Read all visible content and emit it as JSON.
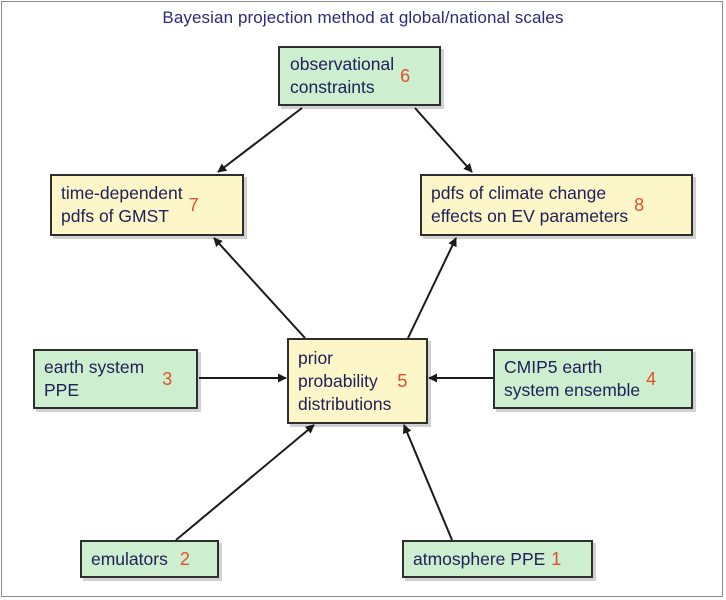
{
  "title": "Bayesian projection method at global/national scales",
  "colors": {
    "title_text": "#2b2a7a",
    "box_text": "#20205a",
    "number": "#e0502a",
    "green_fill": "#cdeecf",
    "cream_fill": "#fdf6c8",
    "arrow": "#1a1a1a"
  },
  "nodes": {
    "observational": {
      "label": "observational\nconstraints",
      "number": "6"
    },
    "gmst": {
      "label": "time-dependent\npdfs of GMST",
      "number": "7"
    },
    "climate_change": {
      "label": "pdfs of climate change\neffects on EV parameters",
      "number": "8"
    },
    "earth_system_ppe": {
      "label": "earth system\nPPE",
      "number": "3"
    },
    "prior": {
      "label": "prior\nprobability\ndistributions",
      "number": "5"
    },
    "cmip5": {
      "label": "CMIP5 earth\nsystem ensemble",
      "number": "4"
    },
    "emulators": {
      "label": "emulators",
      "number": "2"
    },
    "atmosphere_ppe": {
      "label": "atmosphere PPE",
      "number": "1"
    }
  },
  "edges": [
    {
      "from": "observational",
      "to": "gmst"
    },
    {
      "from": "observational",
      "to": "climate_change"
    },
    {
      "from": "prior",
      "to": "gmst"
    },
    {
      "from": "prior",
      "to": "climate_change"
    },
    {
      "from": "earth_system_ppe",
      "to": "prior"
    },
    {
      "from": "cmip5",
      "to": "prior"
    },
    {
      "from": "emulators",
      "to": "prior"
    },
    {
      "from": "atmosphere_ppe",
      "to": "prior"
    }
  ]
}
